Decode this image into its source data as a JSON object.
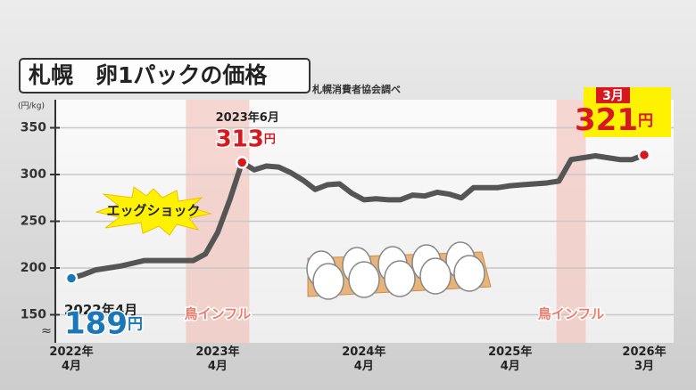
{
  "title": "札幌　卵1パックの価格",
  "source": "札幌消費者協会調べ",
  "chart_data": {
    "type": "line",
    "y_unit": "(円/kg)",
    "categories": [
      "2022年\n4月",
      null,
      null,
      null,
      null,
      null,
      null,
      null,
      null,
      null,
      null,
      null,
      "2023年\n4月",
      null,
      null,
      null,
      null,
      null,
      null,
      null,
      null,
      null,
      null,
      null,
      "2024年\n4月",
      null,
      null,
      null,
      null,
      null,
      null,
      null,
      null,
      null,
      null,
      null,
      "2025年\n4月",
      null,
      null,
      null,
      null,
      null,
      null,
      null,
      null,
      null,
      null,
      "2026年\n3月"
    ],
    "series": [
      {
        "color": "#555555",
        "values": [
          189,
          193,
          198,
          200,
          202,
          205,
          208,
          208,
          208,
          208,
          208,
          215,
          238,
          273,
          313,
          305,
          309,
          308,
          302,
          294,
          284,
          289,
          290,
          280,
          273,
          274,
          273,
          273,
          278,
          277,
          281,
          279,
          275,
          286,
          286,
          286,
          288,
          289,
          290,
          291,
          293,
          316,
          318,
          320,
          318,
          316,
          316,
          321
        ],
        "value_labels": [
          "189円",
          null,
          null,
          null,
          null,
          null,
          null,
          null,
          null,
          null,
          null,
          null,
          null,
          null,
          "313円",
          null,
          null,
          null,
          null,
          null,
          null,
          null,
          null,
          null,
          null,
          null,
          null,
          null,
          null,
          null,
          null,
          null,
          null,
          null,
          null,
          null,
          null,
          null,
          null,
          null,
          null,
          null,
          null,
          null,
          null,
          null,
          null,
          "321円"
        ],
        "point_labels": [
          "2022年4月",
          null,
          null,
          null,
          null,
          null,
          null,
          null,
          null,
          null,
          null,
          null,
          null,
          null,
          "2023年6月",
          null,
          null,
          null,
          null,
          null,
          null,
          null,
          null,
          null,
          null,
          null,
          null,
          null,
          null,
          null,
          null,
          null,
          null,
          null,
          null,
          null,
          null,
          null,
          null,
          null,
          null,
          null,
          null,
          null,
          null,
          null,
          null,
          "3月"
        ],
        "highlight_colors": [
          "#1b78b8",
          null,
          null,
          null,
          null,
          null,
          null,
          null,
          null,
          null,
          null,
          null,
          null,
          null,
          "#d7181f",
          null,
          null,
          null,
          null,
          null,
          null,
          null,
          null,
          null,
          null,
          null,
          null,
          null,
          null,
          null,
          null,
          null,
          null,
          null,
          null,
          null,
          null,
          null,
          null,
          null,
          null,
          null,
          null,
          null,
          null,
          null,
          null,
          "#d7181f"
        ]
      }
    ],
    "bands": [
      {
        "label": "鳥インフル",
        "from": 9.4,
        "to": 14.6
      },
      {
        "label": "鳥インフル",
        "from": 39.8,
        "to": 42.2
      }
    ],
    "callout": "エッグショック",
    "ylim": [
      120,
      380
    ],
    "yticks": [
      150,
      200,
      250,
      300,
      350
    ],
    "grid": true
  }
}
